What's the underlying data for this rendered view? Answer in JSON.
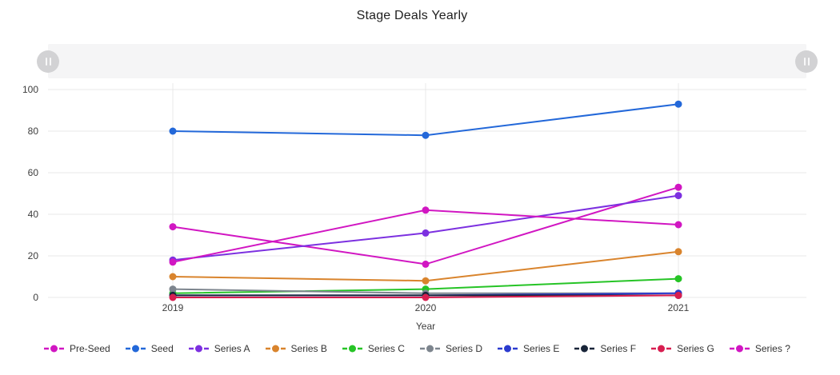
{
  "chart_data": {
    "type": "line",
    "title": "Stage Deals Yearly",
    "xlabel": "Year",
    "x": [
      "2019",
      "2020",
      "2021"
    ],
    "ylim": [
      0,
      100
    ],
    "yticks": [
      0,
      20,
      40,
      60,
      80,
      100
    ],
    "grid": true,
    "legend_position": "bottom",
    "marker_style": "dash-dot-dash",
    "series": [
      {
        "name": "Pre-Seed",
        "color": "#d116c2",
        "values": [
          34,
          16,
          53
        ]
      },
      {
        "name": "Seed",
        "color": "#2368d9",
        "values": [
          80,
          78,
          93
        ]
      },
      {
        "name": "Series A",
        "color": "#7c30e0",
        "values": [
          18,
          31,
          49
        ]
      },
      {
        "name": "Series B",
        "color": "#d9842d",
        "values": [
          10,
          8,
          22
        ]
      },
      {
        "name": "Series C",
        "color": "#26c426",
        "values": [
          2,
          4,
          9
        ]
      },
      {
        "name": "Series D",
        "color": "#7d858e",
        "values": [
          4,
          2,
          2
        ]
      },
      {
        "name": "Series E",
        "color": "#2b3bcf",
        "values": [
          1,
          1,
          2
        ]
      },
      {
        "name": "Series F",
        "color": "#192539",
        "values": [
          1,
          1,
          1
        ]
      },
      {
        "name": "Series G",
        "color": "#d81e50",
        "values": [
          0,
          0,
          1
        ]
      },
      {
        "name": "Series ?",
        "color": "#d116c2",
        "values": [
          17,
          42,
          35
        ]
      }
    ]
  },
  "ui": {
    "brush": {
      "left_handle_icon": "drag-grip-icon",
      "right_handle_icon": "drag-grip-icon"
    }
  }
}
